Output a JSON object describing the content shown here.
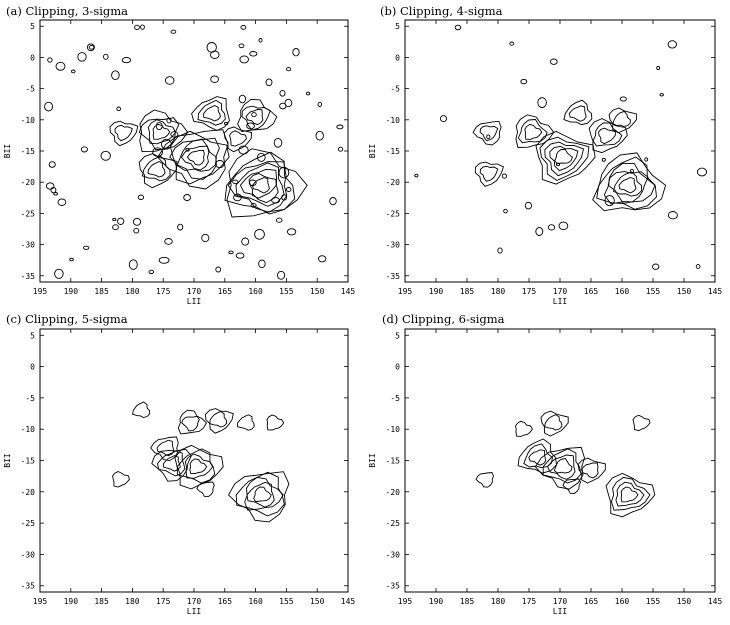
{
  "figure": {
    "panels": [
      {
        "title": "(a) Clipping, 3-sigma"
      },
      {
        "title": "(b) Clipping, 4-sigma"
      },
      {
        "title": "(c) Clipping, 5-sigma"
      },
      {
        "title": "(d) Clipping, 6-sigma"
      }
    ]
  },
  "chart_data": [
    {
      "type": "contour",
      "title": "(a) Clipping, 3-sigma",
      "xlabel": "LII",
      "ylabel": "BII",
      "xlim": [
        195,
        145
      ],
      "ylim": [
        -36,
        6
      ],
      "xticks": [
        195,
        190,
        185,
        180,
        175,
        170,
        165,
        160,
        155,
        150,
        145
      ],
      "yticks": [
        5,
        0,
        -5,
        -10,
        -15,
        -20,
        -25,
        -30,
        -35
      ],
      "xtick_labels": [
        "195",
        "190",
        "185",
        "180",
        "175",
        "170",
        "165",
        "160",
        "155",
        "150",
        "145"
      ],
      "ytick_labels": [
        "5",
        "0",
        "-5",
        "-10",
        "-15",
        "-20",
        "-25",
        "-30",
        "-35"
      ],
      "grid": false,
      "peaks": [
        {
          "l": 169.5,
          "b": -16,
          "levels": 6
        },
        {
          "l": 159,
          "b": -20.5,
          "levels": 7
        },
        {
          "l": 175.5,
          "b": -12,
          "levels": 4
        },
        {
          "l": 167,
          "b": -9,
          "levels": 3
        },
        {
          "l": 160,
          "b": -9.5,
          "levels": 3
        },
        {
          "l": 163,
          "b": -13,
          "levels": 2
        },
        {
          "l": 176,
          "b": -18,
          "levels": 3
        },
        {
          "l": 181.5,
          "b": -12,
          "levels": 2
        }
      ]
    },
    {
      "type": "contour",
      "title": "(b) Clipping, 4-sigma",
      "xlabel": "LII",
      "ylabel": "BII",
      "xlim": [
        195,
        145
      ],
      "ylim": [
        -36,
        6
      ],
      "xticks": [
        195,
        190,
        185,
        180,
        175,
        170,
        165,
        160,
        155,
        150,
        145
      ],
      "yticks": [
        5,
        0,
        -5,
        -10,
        -15,
        -20,
        -25,
        -30,
        -35
      ],
      "xtick_labels": [
        "195",
        "190",
        "185",
        "180",
        "175",
        "170",
        "165",
        "160",
        "155",
        "150",
        "145"
      ],
      "ytick_labels": [
        "5",
        "0",
        "-5",
        "-10",
        "-15",
        "-20",
        "-25",
        "-30",
        "-35"
      ],
      "grid": false,
      "peaks": [
        {
          "l": 169.5,
          "b": -16,
          "levels": 5
        },
        {
          "l": 159,
          "b": -20.5,
          "levels": 6
        },
        {
          "l": 174.5,
          "b": -12,
          "levels": 3
        },
        {
          "l": 167,
          "b": -9,
          "levels": 2
        },
        {
          "l": 160,
          "b": -10,
          "levels": 2
        },
        {
          "l": 162.5,
          "b": -12.5,
          "levels": 3
        },
        {
          "l": 181.5,
          "b": -12,
          "levels": 2
        },
        {
          "l": 181.5,
          "b": -18.5,
          "levels": 2
        }
      ]
    },
    {
      "type": "contour",
      "title": "(c) Clipping, 5-sigma",
      "xlabel": "LII",
      "ylabel": "BII",
      "xlim": [
        195,
        145
      ],
      "ylim": [
        -36,
        6
      ],
      "xticks": [
        195,
        190,
        185,
        180,
        175,
        170,
        165,
        160,
        155,
        150,
        145
      ],
      "yticks": [
        5,
        0,
        -5,
        -10,
        -15,
        -20,
        -25,
        -30,
        -35
      ],
      "xtick_labels": [
        "195",
        "190",
        "185",
        "180",
        "175",
        "170",
        "165",
        "160",
        "155",
        "150",
        "145"
      ],
      "ytick_labels": [
        "5",
        "0",
        "-5",
        "-10",
        "-15",
        "-20",
        "-25",
        "-30",
        "-35"
      ],
      "grid": false,
      "peaks": [
        {
          "l": 169.5,
          "b": -16,
          "levels": 4
        },
        {
          "l": 173.5,
          "b": -15.5,
          "levels": 3
        },
        {
          "l": 159,
          "b": -20.5,
          "levels": 5
        },
        {
          "l": 174.5,
          "b": -13,
          "levels": 2
        },
        {
          "l": 170.5,
          "b": -9,
          "levels": 2
        },
        {
          "l": 166,
          "b": -8.5,
          "levels": 2
        },
        {
          "l": 168,
          "b": -19.5,
          "levels": 1
        },
        {
          "l": 157,
          "b": -9,
          "levels": 1
        },
        {
          "l": 161.5,
          "b": -9,
          "levels": 1
        },
        {
          "l": 182,
          "b": -18,
          "levels": 1
        },
        {
          "l": 178.5,
          "b": -7,
          "levels": 1
        }
      ]
    },
    {
      "type": "contour",
      "title": "(d) Clipping, 6-sigma",
      "xlabel": "LII",
      "ylabel": "BII",
      "xlim": [
        195,
        145
      ],
      "ylim": [
        -36,
        6
      ],
      "xticks": [
        195,
        190,
        185,
        180,
        175,
        170,
        165,
        160,
        155,
        150,
        145
      ],
      "yticks": [
        5,
        0,
        -5,
        -10,
        -15,
        -20,
        -25,
        -30,
        -35
      ],
      "xtick_labels": [
        "195",
        "190",
        "185",
        "180",
        "175",
        "170",
        "165",
        "160",
        "155",
        "150",
        "145"
      ],
      "ytick_labels": [
        "5",
        "0",
        "-5",
        "-10",
        "-15",
        "-20",
        "-25",
        "-30",
        "-35"
      ],
      "grid": false,
      "peaks": [
        {
          "l": 169.5,
          "b": -16,
          "levels": 4
        },
        {
          "l": 173.5,
          "b": -14.5,
          "levels": 3
        },
        {
          "l": 159,
          "b": -20.5,
          "levels": 4
        },
        {
          "l": 171,
          "b": -9,
          "levels": 2
        },
        {
          "l": 165,
          "b": -16.5,
          "levels": 2
        },
        {
          "l": 176,
          "b": -10,
          "levels": 1
        },
        {
          "l": 157,
          "b": -9,
          "levels": 1
        },
        {
          "l": 182,
          "b": -18,
          "levels": 1
        },
        {
          "l": 168,
          "b": -19,
          "levels": 1
        }
      ]
    }
  ]
}
